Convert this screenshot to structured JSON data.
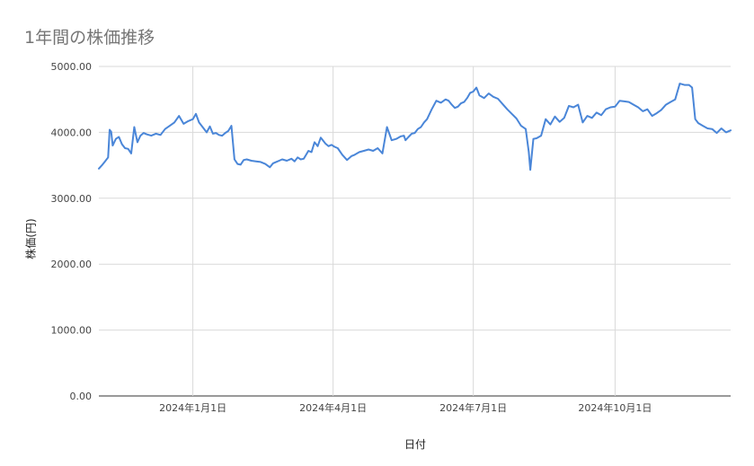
{
  "chart_data": {
    "type": "line",
    "title": "1年間の株価推移",
    "xlabel": "日付",
    "ylabel": "株価(円)",
    "ylim": [
      0,
      5000
    ],
    "xlim": [
      "2023-11-01",
      "2024-12-15"
    ],
    "y_ticks": [
      {
        "value": 0,
        "label": "0.00"
      },
      {
        "value": 1000,
        "label": "1000.00"
      },
      {
        "value": 2000,
        "label": "2000.00"
      },
      {
        "value": 3000,
        "label": "3000.00"
      },
      {
        "value": 4000,
        "label": "4000.00"
      },
      {
        "value": 5000,
        "label": "5000.00"
      }
    ],
    "x_ticks": [
      {
        "date": "2024-01-01",
        "label": "2024年1月1日"
      },
      {
        "date": "2024-04-01",
        "label": "2024年4月1日"
      },
      {
        "date": "2024-07-01",
        "label": "2024年7月1日"
      },
      {
        "date": "2024-10-01",
        "label": "2024年10月1日"
      }
    ],
    "grid": true,
    "legend": "none",
    "line_color": "#4a86d8",
    "series": [
      {
        "x": [
          "2023-11-01",
          "2023-11-03",
          "2023-11-05",
          "2023-11-07",
          "2023-11-08",
          "2023-11-09",
          "2023-11-10",
          "2023-11-12",
          "2023-11-14",
          "2023-11-16",
          "2023-11-18",
          "2023-11-20",
          "2023-11-22",
          "2023-11-24",
          "2023-11-26",
          "2023-11-27",
          "2023-11-28",
          "2023-11-30",
          "2023-12-02",
          "2023-12-05",
          "2023-12-08",
          "2023-12-11",
          "2023-12-14",
          "2023-12-17",
          "2023-12-20",
          "2023-12-23",
          "2023-12-26",
          "2023-12-29",
          "2024-01-01",
          "2024-01-03",
          "2024-01-05",
          "2024-01-08",
          "2024-01-10",
          "2024-01-12",
          "2024-01-14",
          "2024-01-16",
          "2024-01-18",
          "2024-01-20",
          "2024-01-22",
          "2024-01-24",
          "2024-01-26",
          "2024-01-28",
          "2024-01-30",
          "2024-02-01",
          "2024-02-03",
          "2024-02-05",
          "2024-02-08",
          "2024-02-11",
          "2024-02-14",
          "2024-02-17",
          "2024-02-20",
          "2024-02-22",
          "2024-02-24",
          "2024-02-26",
          "2024-02-28",
          "2024-03-02",
          "2024-03-05",
          "2024-03-07",
          "2024-03-09",
          "2024-03-11",
          "2024-03-13",
          "2024-03-16",
          "2024-03-18",
          "2024-03-20",
          "2024-03-22",
          "2024-03-24",
          "2024-03-27",
          "2024-03-29",
          "2024-03-31",
          "2024-04-02",
          "2024-04-04",
          "2024-04-07",
          "2024-04-10",
          "2024-04-13",
          "2024-04-15",
          "2024-04-18",
          "2024-04-21",
          "2024-04-24",
          "2024-04-27",
          "2024-04-30",
          "2024-05-03",
          "2024-05-06",
          "2024-05-09",
          "2024-05-12",
          "2024-05-15",
          "2024-05-17",
          "2024-05-18",
          "2024-05-20",
          "2024-05-22",
          "2024-05-24",
          "2024-05-26",
          "2024-05-28",
          "2024-05-30",
          "2024-06-01",
          "2024-06-04",
          "2024-06-07",
          "2024-06-10",
          "2024-06-13",
          "2024-06-15",
          "2024-06-17",
          "2024-06-19",
          "2024-06-21",
          "2024-06-23",
          "2024-06-25",
          "2024-06-27",
          "2024-06-29",
          "2024-07-01",
          "2024-07-03",
          "2024-07-05",
          "2024-07-08",
          "2024-07-11",
          "2024-07-14",
          "2024-07-17",
          "2024-07-20",
          "2024-07-23",
          "2024-07-26",
          "2024-07-29",
          "2024-08-01",
          "2024-08-04",
          "2024-08-06",
          "2024-08-07",
          "2024-08-09",
          "2024-08-11",
          "2024-08-14",
          "2024-08-17",
          "2024-08-20",
          "2024-08-23",
          "2024-08-26",
          "2024-08-29",
          "2024-09-01",
          "2024-09-04",
          "2024-09-07",
          "2024-09-10",
          "2024-09-13",
          "2024-09-16",
          "2024-09-19",
          "2024-09-22",
          "2024-09-25",
          "2024-09-28",
          "2024-10-01",
          "2024-10-04",
          "2024-10-07",
          "2024-10-10",
          "2024-10-13",
          "2024-10-16",
          "2024-10-19",
          "2024-10-22",
          "2024-10-25",
          "2024-10-28",
          "2024-10-31",
          "2024-11-03",
          "2024-11-06",
          "2024-11-09",
          "2024-11-12",
          "2024-11-15",
          "2024-11-18",
          "2024-11-20",
          "2024-11-22",
          "2024-11-24",
          "2024-11-27",
          "2024-11-30",
          "2024-12-03",
          "2024-12-06",
          "2024-12-09",
          "2024-12-12",
          "2024-12-15"
        ],
        "y": [
          3450,
          3500,
          3560,
          3620,
          4040,
          4010,
          3800,
          3900,
          3930,
          3820,
          3760,
          3750,
          3680,
          4080,
          3850,
          3900,
          3950,
          3990,
          3970,
          3950,
          3980,
          3960,
          4050,
          4100,
          4150,
          4250,
          4130,
          4170,
          4200,
          4280,
          4150,
          4060,
          4000,
          4090,
          3980,
          3990,
          3960,
          3950,
          3990,
          4020,
          4100,
          3590,
          3520,
          3510,
          3580,
          3590,
          3570,
          3560,
          3550,
          3520,
          3470,
          3530,
          3550,
          3570,
          3590,
          3570,
          3600,
          3560,
          3620,
          3590,
          3600,
          3720,
          3700,
          3850,
          3790,
          3920,
          3830,
          3790,
          3810,
          3780,
          3760,
          3660,
          3580,
          3640,
          3660,
          3700,
          3720,
          3740,
          3720,
          3760,
          3680,
          4080,
          3880,
          3900,
          3940,
          3950,
          3880,
          3930,
          3980,
          3990,
          4050,
          4080,
          4150,
          4200,
          4350,
          4480,
          4450,
          4500,
          4480,
          4420,
          4370,
          4390,
          4440,
          4460,
          4520,
          4600,
          4620,
          4680,
          4560,
          4520,
          4590,
          4540,
          4510,
          4430,
          4350,
          4280,
          4210,
          4100,
          4050,
          3700,
          3430,
          3900,
          3910,
          3950,
          4200,
          4120,
          4240,
          4160,
          4220,
          4400,
          4380,
          4420,
          4150,
          4250,
          4220,
          4300,
          4260,
          4350,
          4380,
          4390,
          4480,
          4470,
          4460,
          4420,
          4380,
          4320,
          4350,
          4250,
          4290,
          4340,
          4420,
          4460,
          4500,
          4740,
          4720,
          4720,
          4680,
          4200,
          4140,
          4100,
          4060,
          4050,
          3990,
          4060,
          4000,
          4030
        ]
      }
    ]
  }
}
